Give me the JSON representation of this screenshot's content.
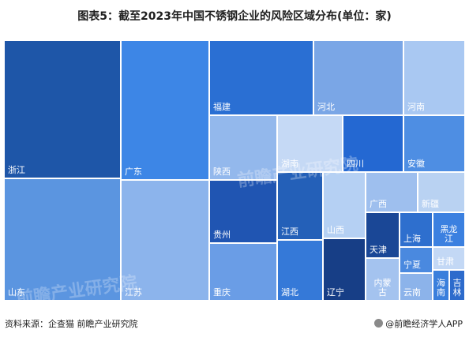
{
  "title": "图表5：截至2023年中国不锈钢企业的风险区域分布(单位：家)",
  "footer": {
    "source": "资料来源：企查猫 前瞻产业研究院",
    "brand": "@前瞻经济学人APP"
  },
  "watermark": "前瞻产业研究院",
  "chart_data": {
    "type": "treemap",
    "title": "图表5：截至2023年中国不锈钢企业的风险区域分布(单位：家)",
    "unit": "家",
    "items": [
      {
        "name": "浙江",
        "color": "#1e56a8"
      },
      {
        "name": "山东",
        "color": "#5b95e0"
      },
      {
        "name": "广东",
        "color": "#3d86e6"
      },
      {
        "name": "江苏",
        "color": "#8cb4ec"
      },
      {
        "name": "福建",
        "color": "#2a6fd3"
      },
      {
        "name": "河北",
        "color": "#7aa6e6"
      },
      {
        "name": "河南",
        "color": "#a9c8f2"
      },
      {
        "name": "陕西",
        "color": "#93b8ec"
      },
      {
        "name": "湖南",
        "color": "#c5d9f5"
      },
      {
        "name": "四川",
        "color": "#2468d2"
      },
      {
        "name": "安徽",
        "color": "#4e8ee3"
      },
      {
        "name": "贵州",
        "color": "#2055b2"
      },
      {
        "name": "重庆",
        "color": "#6a9de6"
      },
      {
        "name": "江西",
        "color": "#2460b8"
      },
      {
        "name": "湖北",
        "color": "#3579d8"
      },
      {
        "name": "山西",
        "color": "#b5d0f3"
      },
      {
        "name": "辽宁",
        "color": "#173e86"
      },
      {
        "name": "广西",
        "color": "#9ebfee"
      },
      {
        "name": "新疆",
        "color": "#b9d2f2"
      },
      {
        "name": "天津",
        "color": "#1a4796"
      },
      {
        "name": "内蒙古",
        "color": "#a4c3ef"
      },
      {
        "name": "上海",
        "color": "#2e6fce"
      },
      {
        "name": "宁夏",
        "color": "#4a89df"
      },
      {
        "name": "云南",
        "color": "#8cb3ea"
      },
      {
        "name": "黑龙江",
        "color": "#3b80e0"
      },
      {
        "name": "甘肃",
        "color": "#c3d8f5"
      },
      {
        "name": "海南",
        "color": "#3a7fdc"
      },
      {
        "name": "吉林",
        "color": "#2d6bcc"
      }
    ]
  }
}
